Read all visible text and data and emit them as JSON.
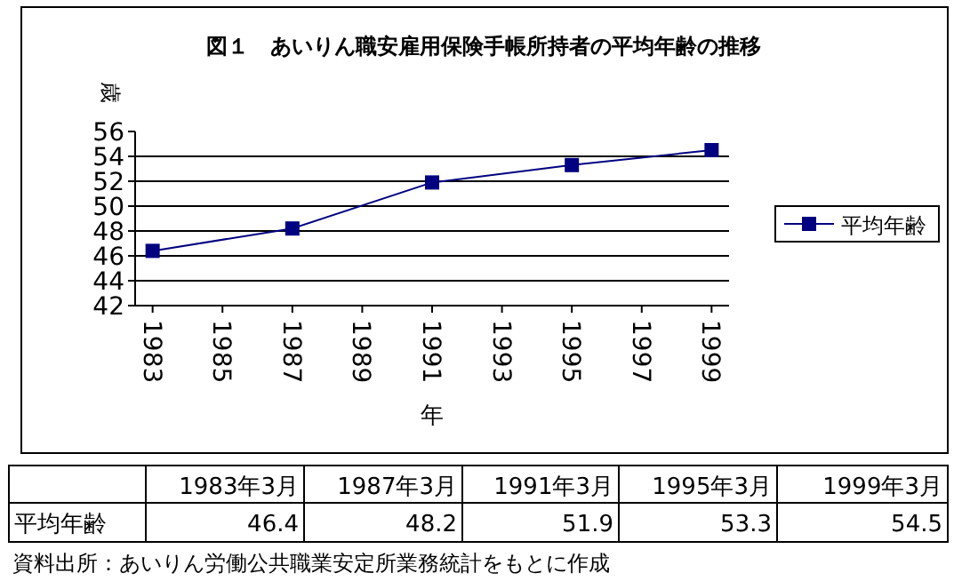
{
  "chart_data": {
    "type": "line",
    "title": "図１　あいりん職安雇用保険手帳所持者の平均年齢の推移",
    "ylabel": "歳",
    "xlabel": "年",
    "x": [
      1983,
      1987,
      1991,
      1995,
      1999
    ],
    "series": [
      {
        "name": "平均年齢",
        "color": "#000080",
        "values": [
          46.4,
          48.2,
          51.9,
          53.3,
          54.5
        ]
      }
    ],
    "xlim": [
      1982.5,
      1999.5
    ],
    "xticks": [
      1983,
      1985,
      1987,
      1989,
      1991,
      1993,
      1995,
      1997,
      1999
    ],
    "ylim": [
      42,
      56
    ],
    "yticks": [
      42,
      44,
      46,
      48,
      50,
      52,
      54,
      56
    ],
    "grid": "y",
    "legend": "right",
    "marker": "square",
    "line_style": "solid",
    "annotations": [
      "1983年3月",
      "1987年3月",
      "1991年3月",
      "1995年3月",
      "1999年3月",
      "46.4",
      "48.2",
      "51.9",
      "53.3",
      "54.5",
      "資料出所：あいりん労働公共職業安定所業務統計をもとに作成"
    ]
  }
}
